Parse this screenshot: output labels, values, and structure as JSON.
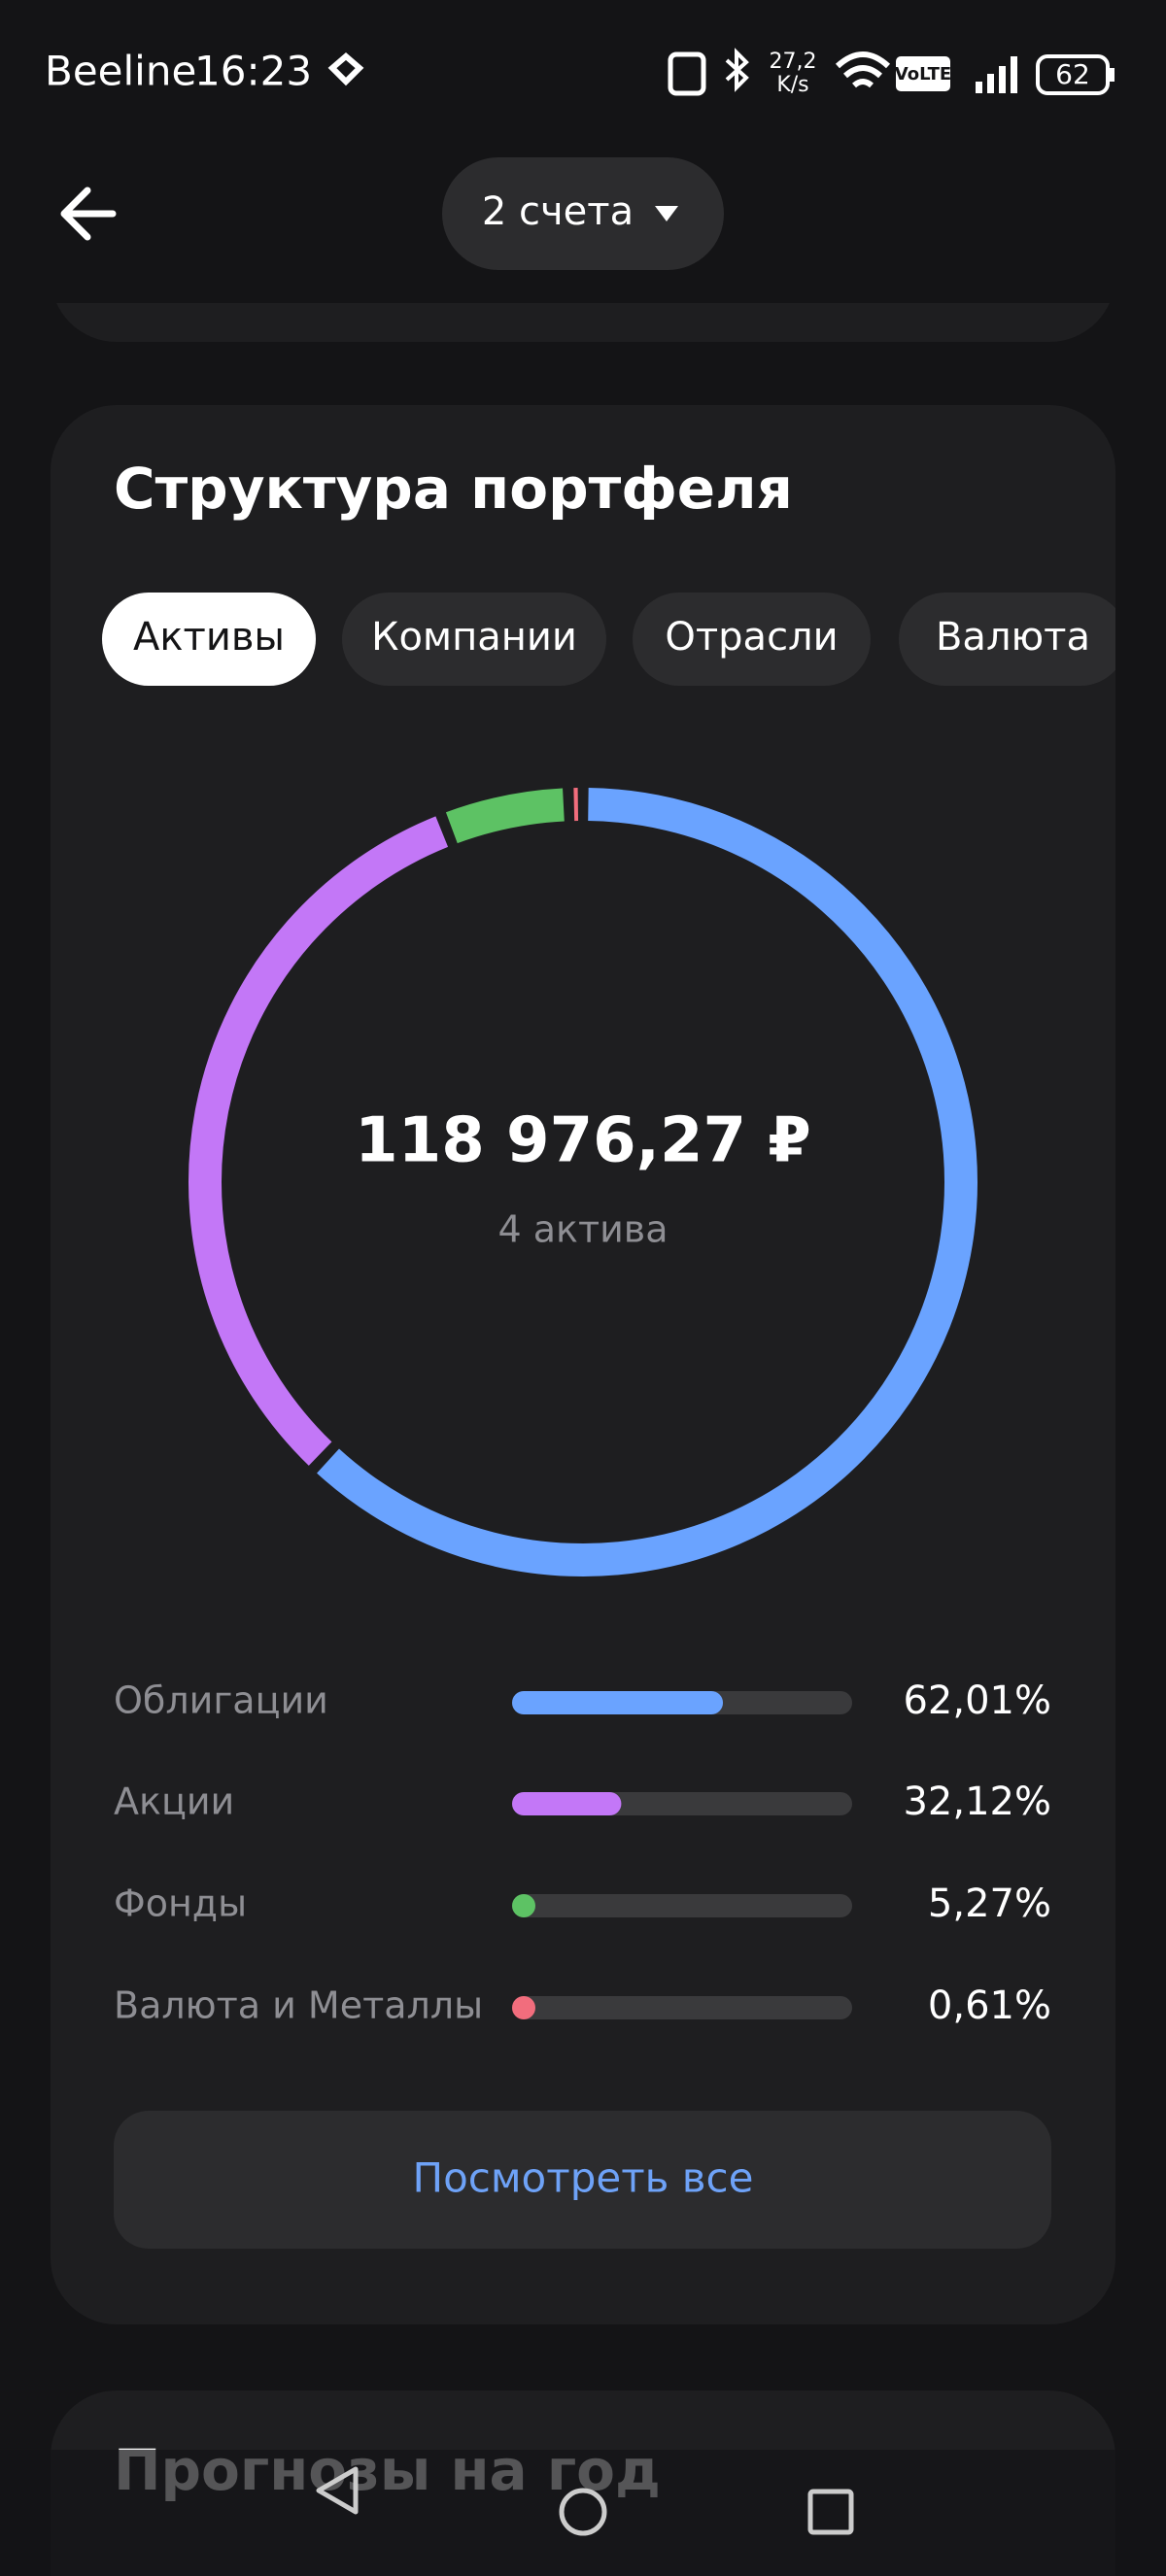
{
  "status_bar": {
    "carrier": "Beeline",
    "time": "16:23",
    "speed": "27,2",
    "speed_unit": "K/s",
    "network": "VoLTE",
    "battery": "62"
  },
  "header": {
    "account_selector": "2 счета"
  },
  "portfolio": {
    "title": "Структура портфеля",
    "tabs": [
      "Активы",
      "Компании",
      "Отрасли",
      "Валюта"
    ],
    "total": "118 976,27 ₽",
    "count_label": "4 актива",
    "items": [
      {
        "name": "Облигации",
        "value": 62.01,
        "value_label": "62,01%",
        "color": "#6aa3ff"
      },
      {
        "name": "Акции",
        "value": 32.12,
        "value_label": "32,12%",
        "color": "#c377f7"
      },
      {
        "name": "Фонды",
        "value": 5.27,
        "value_label": "5,27%",
        "color": "#5dc264"
      },
      {
        "name": "Валюта и Металлы",
        "value": 0.61,
        "value_label": "0,61%",
        "color": "#f26d7d"
      }
    ],
    "button": "Посмотреть все"
  },
  "next_section": {
    "title": "Прогнозы на год"
  }
}
